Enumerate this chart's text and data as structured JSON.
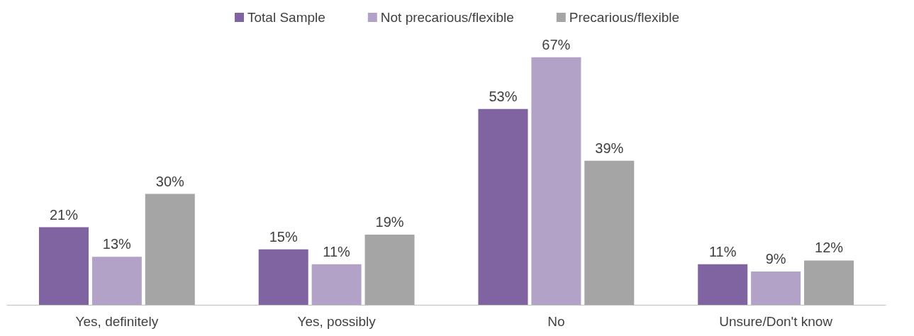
{
  "chart_data": {
    "type": "bar",
    "categories": [
      "Yes, definitely",
      "Yes, possibly",
      "No",
      "Unsure/Don't know"
    ],
    "series": [
      {
        "name": "Total Sample",
        "color": "#8064a2",
        "values": [
          21,
          15,
          53,
          11
        ],
        "value_labels": [
          "21%",
          "15%",
          "53%",
          "11%"
        ]
      },
      {
        "name": "Not precarious/flexible",
        "color": "#b3a2c7",
        "values": [
          13,
          11,
          67,
          9
        ],
        "value_labels": [
          "13%",
          "11%",
          "67%",
          "9%"
        ]
      },
      {
        "name": "Precarious/flexible",
        "color": "#a5a5a5",
        "values": [
          30,
          19,
          39,
          12
        ],
        "value_labels": [
          "30%",
          "19%",
          "39%",
          "12%"
        ]
      }
    ],
    "legend": "top"
  }
}
